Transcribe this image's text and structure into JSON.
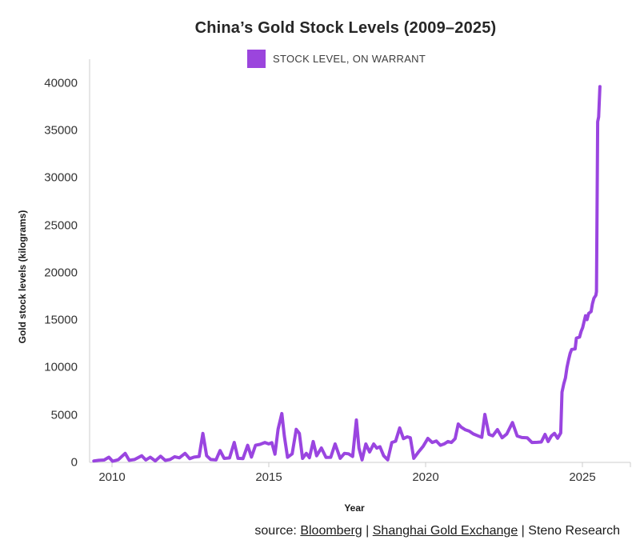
{
  "title": "China’s Gold Stock Levels (2009–2025)",
  "legend": {
    "label": "STOCK LEVEL, ON WARRANT",
    "swatch_color": "#9b45dd"
  },
  "axes": {
    "x_label": "Year",
    "y_label": "Gold stock levels (kilograms)",
    "x_ticks": [
      "2010",
      "2015",
      "2020",
      "2025"
    ],
    "y_ticks": [
      "0",
      "5000",
      "10000",
      "15000",
      "20000",
      "25000",
      "30000",
      "35000",
      "40000"
    ]
  },
  "source": {
    "parts": [
      {
        "text": "source: ",
        "link": false
      },
      {
        "text": "Bloomberg",
        "link": true
      },
      {
        "text": " | ",
        "link": false
      },
      {
        "text": "Shanghai Gold Exchange",
        "link": true
      },
      {
        "text": " | Steno Research",
        "link": false
      }
    ]
  },
  "chart_data": {
    "type": "line",
    "title": "China’s Gold Stock Levels (2009–2025)",
    "xlabel": "Year",
    "ylabel": "Gold stock levels (kilograms)",
    "xlim": [
      2009.3,
      2026.3
    ],
    "ylim": [
      0,
      40000
    ],
    "grid": false,
    "legend_position": "top",
    "x_ticks": [
      2010,
      2015,
      2020,
      2025
    ],
    "y_ticks": [
      0,
      5000,
      10000,
      15000,
      20000,
      25000,
      30000,
      35000,
      40000
    ],
    "series": [
      {
        "name": "STOCK LEVEL, ON WARRANT",
        "color": "#9a45e0",
        "points": [
          [
            2009.42,
            150
          ],
          [
            2009.58,
            220
          ],
          [
            2009.75,
            250
          ],
          [
            2009.9,
            550
          ],
          [
            2010.02,
            120
          ],
          [
            2010.2,
            280
          ],
          [
            2010.42,
            950
          ],
          [
            2010.55,
            220
          ],
          [
            2010.72,
            300
          ],
          [
            2010.95,
            700
          ],
          [
            2011.08,
            250
          ],
          [
            2011.22,
            550
          ],
          [
            2011.38,
            160
          ],
          [
            2011.55,
            650
          ],
          [
            2011.7,
            210
          ],
          [
            2011.85,
            300
          ],
          [
            2012.0,
            600
          ],
          [
            2012.15,
            480
          ],
          [
            2012.33,
            950
          ],
          [
            2012.48,
            400
          ],
          [
            2012.62,
            560
          ],
          [
            2012.78,
            620
          ],
          [
            2012.9,
            3050
          ],
          [
            2013.02,
            700
          ],
          [
            2013.15,
            300
          ],
          [
            2013.32,
            260
          ],
          [
            2013.45,
            1250
          ],
          [
            2013.58,
            420
          ],
          [
            2013.75,
            470
          ],
          [
            2013.9,
            2100
          ],
          [
            2014.02,
            430
          ],
          [
            2014.18,
            400
          ],
          [
            2014.33,
            1800
          ],
          [
            2014.45,
            560
          ],
          [
            2014.58,
            1800
          ],
          [
            2014.72,
            1900
          ],
          [
            2014.88,
            2100
          ],
          [
            2015.0,
            1950
          ],
          [
            2015.1,
            2080
          ],
          [
            2015.2,
            870
          ],
          [
            2015.3,
            3500
          ],
          [
            2015.42,
            5150
          ],
          [
            2015.5,
            2800
          ],
          [
            2015.6,
            540
          ],
          [
            2015.75,
            900
          ],
          [
            2015.88,
            3480
          ],
          [
            2015.98,
            3060
          ],
          [
            2016.08,
            420
          ],
          [
            2016.2,
            950
          ],
          [
            2016.3,
            500
          ],
          [
            2016.42,
            2200
          ],
          [
            2016.53,
            700
          ],
          [
            2016.68,
            1520
          ],
          [
            2016.83,
            520
          ],
          [
            2016.98,
            540
          ],
          [
            2017.12,
            1950
          ],
          [
            2017.28,
            430
          ],
          [
            2017.42,
            950
          ],
          [
            2017.55,
            900
          ],
          [
            2017.68,
            620
          ],
          [
            2017.8,
            4470
          ],
          [
            2017.88,
            1500
          ],
          [
            2017.98,
            270
          ],
          [
            2018.1,
            1940
          ],
          [
            2018.22,
            1100
          ],
          [
            2018.35,
            1940
          ],
          [
            2018.45,
            1500
          ],
          [
            2018.55,
            1650
          ],
          [
            2018.67,
            700
          ],
          [
            2018.8,
            270
          ],
          [
            2018.93,
            2100
          ],
          [
            2019.05,
            2230
          ],
          [
            2019.18,
            3630
          ],
          [
            2019.3,
            2500
          ],
          [
            2019.42,
            2700
          ],
          [
            2019.52,
            2600
          ],
          [
            2019.63,
            430
          ],
          [
            2019.78,
            1100
          ],
          [
            2019.93,
            1700
          ],
          [
            2020.08,
            2530
          ],
          [
            2020.22,
            2100
          ],
          [
            2020.35,
            2250
          ],
          [
            2020.48,
            1800
          ],
          [
            2020.6,
            1950
          ],
          [
            2020.72,
            2200
          ],
          [
            2020.83,
            2100
          ],
          [
            2020.95,
            2500
          ],
          [
            2021.05,
            4050
          ],
          [
            2021.15,
            3700
          ],
          [
            2021.27,
            3450
          ],
          [
            2021.4,
            3300
          ],
          [
            2021.53,
            3000
          ],
          [
            2021.68,
            2800
          ],
          [
            2021.8,
            2640
          ],
          [
            2021.9,
            5060
          ],
          [
            2022.03,
            2950
          ],
          [
            2022.15,
            2800
          ],
          [
            2022.3,
            3460
          ],
          [
            2022.45,
            2600
          ],
          [
            2022.6,
            3000
          ],
          [
            2022.78,
            4200
          ],
          [
            2022.93,
            2780
          ],
          [
            2023.08,
            2620
          ],
          [
            2023.25,
            2600
          ],
          [
            2023.4,
            2100
          ],
          [
            2023.57,
            2120
          ],
          [
            2023.7,
            2150
          ],
          [
            2023.82,
            2950
          ],
          [
            2023.92,
            2200
          ],
          [
            2024.02,
            2780
          ],
          [
            2024.12,
            3060
          ],
          [
            2024.22,
            2550
          ],
          [
            2024.32,
            3100
          ],
          [
            2024.36,
            7400
          ],
          [
            2024.42,
            8300
          ],
          [
            2024.47,
            8900
          ],
          [
            2024.52,
            10000
          ],
          [
            2024.57,
            10800
          ],
          [
            2024.62,
            11500
          ],
          [
            2024.67,
            11900
          ],
          [
            2024.78,
            11950
          ],
          [
            2024.82,
            13100
          ],
          [
            2024.92,
            13200
          ],
          [
            2024.97,
            13800
          ],
          [
            2025.02,
            14200
          ],
          [
            2025.07,
            14900
          ],
          [
            2025.11,
            15450
          ],
          [
            2025.16,
            15050
          ],
          [
            2025.21,
            15700
          ],
          [
            2025.29,
            15900
          ],
          [
            2025.33,
            16700
          ],
          [
            2025.38,
            17300
          ],
          [
            2025.44,
            17600
          ],
          [
            2025.46,
            18000
          ],
          [
            2025.5,
            35900
          ],
          [
            2025.53,
            36400
          ],
          [
            2025.57,
            39600
          ]
        ]
      }
    ],
    "source_text": "source: Bloomberg | Shanghai Gold Exchange | Steno Research"
  }
}
